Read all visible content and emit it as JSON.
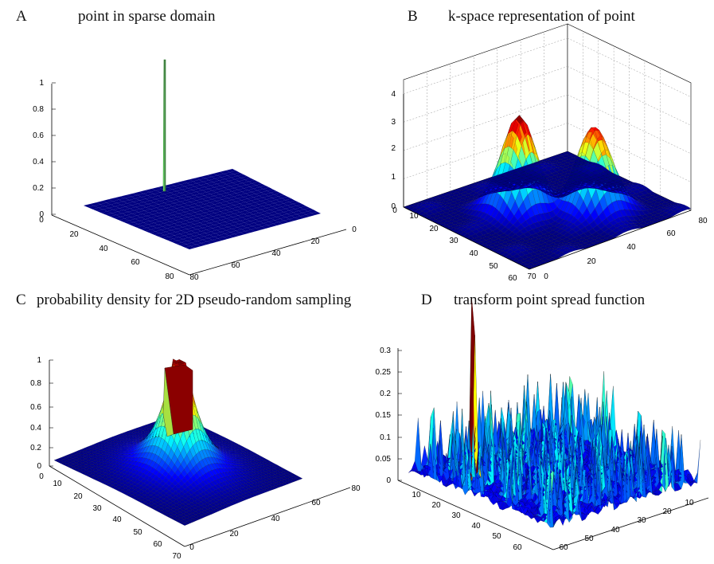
{
  "panels": [
    {
      "letter": "A",
      "title": "point in sparse domain"
    },
    {
      "letter": "B",
      "title": "k-space representation of point"
    },
    {
      "letter": "C",
      "title": "probability density for 2D pseudo-random sampling"
    },
    {
      "letter": "D",
      "title": "transform point spread function"
    }
  ],
  "chart_data": [
    {
      "type": "surface",
      "title": "point in sparse domain",
      "zticks": [
        "0",
        "0.2",
        "0.4",
        "0.6",
        "0.8",
        "1"
      ],
      "xticks": [
        "20",
        "40",
        "60",
        "80"
      ],
      "yticks": [
        "0",
        "20",
        "40",
        "60",
        "80"
      ],
      "yticks_extra": [
        "0"
      ],
      "zlim": [
        0,
        1
      ],
      "grid": false,
      "peak": {
        "x": 40,
        "y": 40,
        "z": 1
      }
    },
    {
      "type": "surface",
      "title": "k-space representation of point",
      "zticks": [
        "0",
        "1",
        "2",
        "3",
        "4"
      ],
      "xticks": [
        "10",
        "20",
        "30",
        "40",
        "50",
        "60",
        "70"
      ],
      "yticks": [
        "20",
        "40",
        "60",
        "80"
      ],
      "xticks_extra": [
        "0"
      ],
      "yticks_extra": [
        "0"
      ],
      "zlim": [
        0,
        4
      ],
      "grid": true,
      "peak_values": [
        3.7,
        3.3
      ]
    },
    {
      "type": "surface",
      "title": "probability density for 2D pseudo-random sampling",
      "zticks": [
        "0",
        "0.2",
        "0.4",
        "0.6",
        "0.8",
        "1"
      ],
      "xticks": [
        "10",
        "20",
        "30",
        "40",
        "50",
        "60",
        "70"
      ],
      "yticks": [
        "0",
        "20",
        "40",
        "60",
        "80"
      ],
      "xticks_extra": [
        "0"
      ],
      "zlim": [
        0,
        1
      ],
      "grid": false,
      "plateau_value": 1
    },
    {
      "type": "surface",
      "title": "transform point spread function",
      "zticks": [
        "0",
        "0.05",
        "0.1",
        "0.15",
        "0.2",
        "0.25",
        "0.3"
      ],
      "xticks": [
        "10",
        "20",
        "30",
        "40",
        "50",
        "60"
      ],
      "yticks": [
        "10",
        "20",
        "30",
        "40",
        "50",
        "60"
      ],
      "zlim": [
        0,
        0.3
      ],
      "grid": false
    }
  ]
}
